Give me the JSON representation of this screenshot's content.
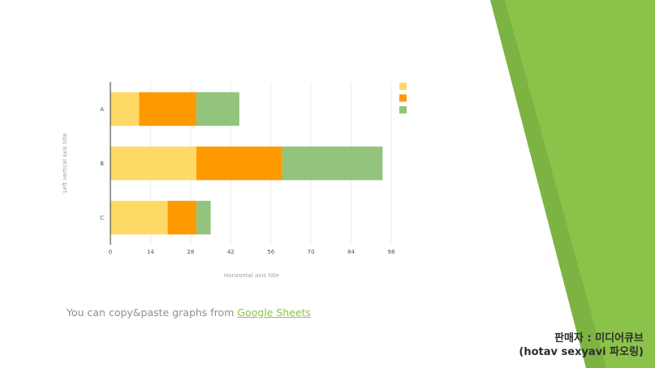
{
  "chart_data": {
    "type": "bar",
    "orientation": "horizontal",
    "stacked": true,
    "categories": [
      "A",
      "B",
      "C"
    ],
    "series": [
      {
        "values": [
          10,
          30,
          20
        ],
        "color": "#ffd966"
      },
      {
        "values": [
          20,
          30,
          10
        ],
        "color": "#ff9900"
      },
      {
        "values": [
          15,
          35,
          5
        ],
        "color": "#93c47d"
      }
    ],
    "xlabel": "Horizontal axis title",
    "ylabel": "Left vertical axis title",
    "xticks": [
      0,
      14,
      28,
      42,
      56,
      70,
      84,
      98
    ],
    "xlim": [
      0,
      98
    ],
    "grid": true,
    "legend": "top-right"
  },
  "caption": {
    "text": "You can copy&paste graphs from ",
    "link_text": "Google Sheets"
  },
  "seller": {
    "line1": "판매자 : 미디어큐브",
    "line2": "(hotav sexyavi 파오링)"
  },
  "colors": {
    "accent_light": "#8bc34a",
    "accent_dark": "#7cb342"
  }
}
